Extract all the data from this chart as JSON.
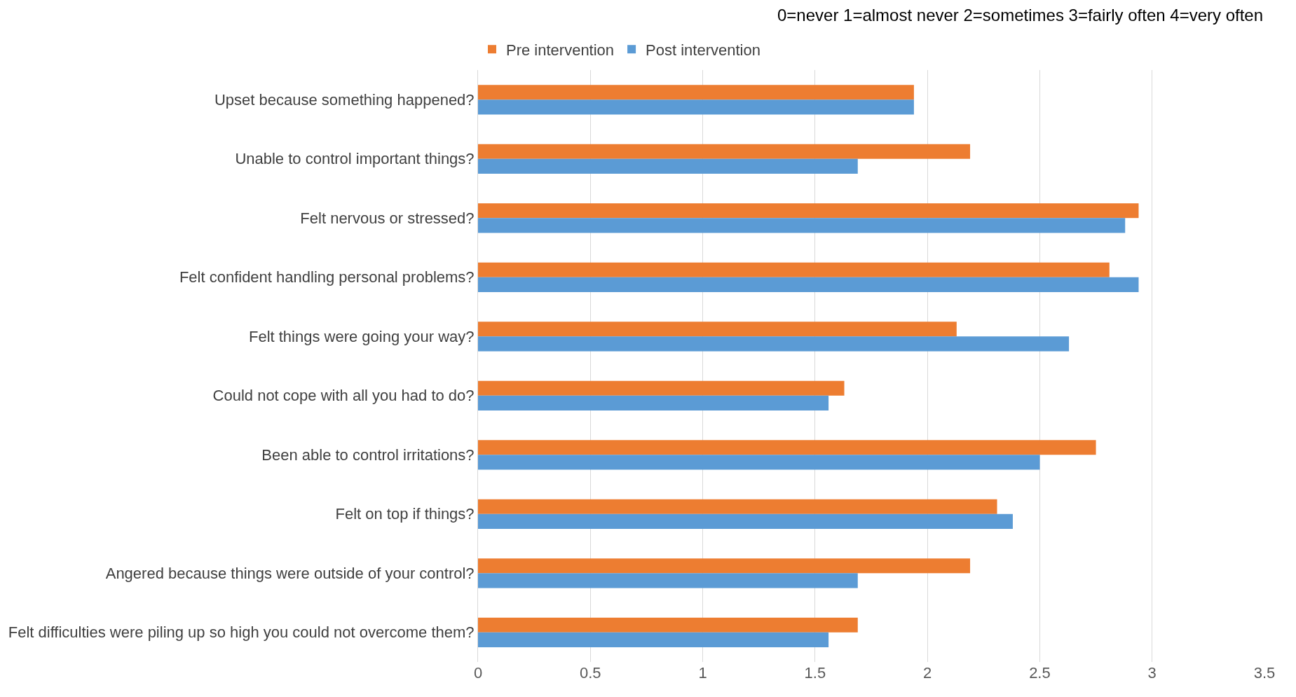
{
  "chart_data": {
    "type": "bar",
    "orientation": "horizontal",
    "categories": [
      "Upset because something happened?",
      "Unable to control important things?",
      "Felt nervous or stressed?",
      "Felt confident handling personal problems?",
      "Felt things were going your way?",
      "Could not cope with all you had to do?",
      "Been able to control irritations?",
      "Felt on top if things?",
      "Angered because things were outside of your control?",
      "Felt difficulties were piling up so high you could not overcome them?"
    ],
    "series": [
      {
        "name": "Pre intervention",
        "color": "#ed7d31",
        "values": [
          1.94,
          2.19,
          2.94,
          2.81,
          2.13,
          1.63,
          2.75,
          2.31,
          2.19,
          1.69
        ]
      },
      {
        "name": "Post intervention",
        "color": "#5b9bd5",
        "values": [
          1.94,
          1.69,
          2.88,
          2.94,
          2.63,
          1.56,
          2.5,
          2.38,
          1.69,
          1.56
        ]
      }
    ],
    "xlim": [
      0,
      3.5
    ],
    "xticks": [
      0,
      0.5,
      1,
      1.5,
      2,
      2.5,
      3,
      3.5
    ],
    "grid": "x",
    "legend": "top left",
    "annotations": [
      "0=never 1=almost never 2=sometimes 3=fairly often 4=very often"
    ]
  }
}
